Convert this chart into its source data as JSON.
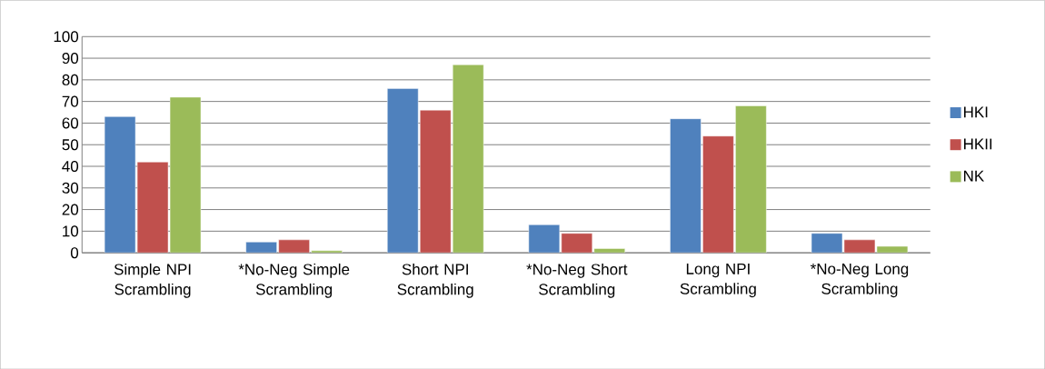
{
  "chart_data": {
    "type": "bar",
    "categories": [
      "Simple NPI Scrambling",
      "*No-Neg Simple Scrambling",
      "Short NPI Scrambling",
      "*No-Neg Short Scrambling",
      "Long NPI Scrambling",
      "*No-Neg Long Scrambling"
    ],
    "series": [
      {
        "name": "HKI",
        "color": "#4f81bd",
        "values": [
          63,
          5,
          76,
          13,
          62,
          9
        ]
      },
      {
        "name": "HKII",
        "color": "#c0504d",
        "values": [
          42,
          6,
          66,
          9,
          54,
          6
        ]
      },
      {
        "name": "NK",
        "color": "#9bbb59",
        "values": [
          72,
          1,
          87,
          2,
          68,
          3
        ]
      }
    ],
    "ylim": [
      0,
      100
    ],
    "yticks": [
      0,
      10,
      20,
      30,
      40,
      50,
      60,
      70,
      80,
      90,
      100
    ],
    "grid": "y",
    "legend": "right"
  }
}
